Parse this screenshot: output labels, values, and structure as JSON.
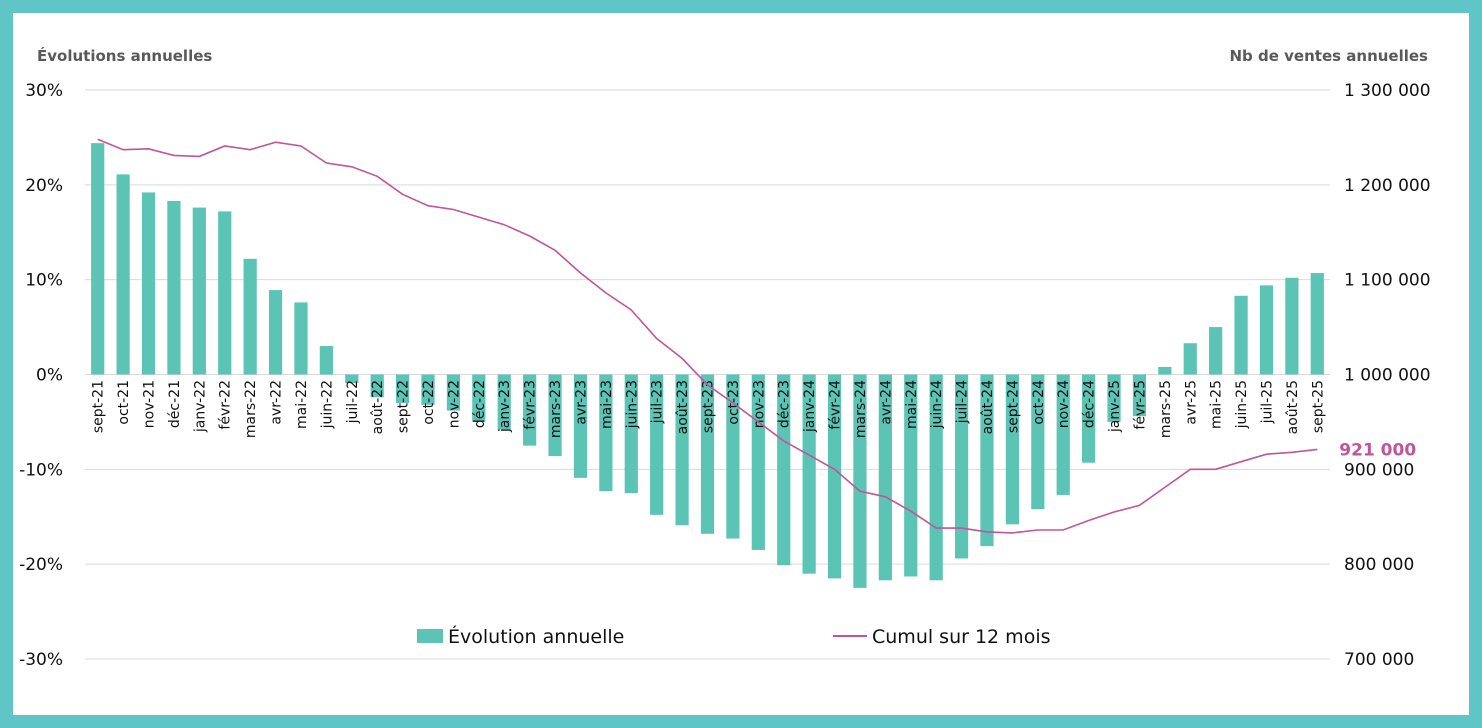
{
  "colors": {
    "frame": "#5fc5c6",
    "bar": "#5cc4b5",
    "line": "#c0559a",
    "grid": "#d9d9d9",
    "text": "#111111",
    "title": "#595959"
  },
  "chart_data": {
    "type": "bar+line",
    "left_axis_title": "Évolutions annuelles",
    "right_axis_title": "Nb de ventes annuelles",
    "left_ticks": [
      "30%",
      "20%",
      "10%",
      "0%",
      "-10%",
      "-20%",
      "-30%"
    ],
    "right_ticks": [
      "1 300 000",
      "1 200 000",
      "1 100 000",
      "1 000 000",
      "900 000",
      "800 000",
      "700 000"
    ],
    "y_left_range": [
      -30,
      30
    ],
    "y_right_range": [
      700000,
      1300000
    ],
    "grid": true,
    "legend_position": "bottom",
    "categories": [
      "sept-21",
      "oct-21",
      "nov-21",
      "déc-21",
      "janv-22",
      "févr-22",
      "mars-22",
      "avr-22",
      "mai-22",
      "juin-22",
      "juil-22",
      "août-22",
      "sept-22",
      "oct-22",
      "nov-22",
      "déc-22",
      "janv-23",
      "févr-23",
      "mars-23",
      "avr-23",
      "mai-23",
      "juin-23",
      "juil-23",
      "août-23",
      "sept-23",
      "oct-23",
      "nov-23",
      "déc-23",
      "janv-24",
      "févr-24",
      "mars-24",
      "avr-24",
      "mai-24",
      "juin-24",
      "juil-24",
      "août-24",
      "sept-24",
      "oct-24",
      "nov-24",
      "déc-24",
      "janv-25",
      "févr-25",
      "mars-25",
      "avr-25",
      "mai-25",
      "juin-25",
      "juil-25",
      "août-25",
      "sept-25"
    ],
    "series": [
      {
        "name": "Évolution annuelle",
        "type": "bar",
        "axis": "left",
        "values": [
          24.4,
          21.1,
          19.2,
          18.3,
          17.6,
          17.2,
          12.2,
          8.9,
          7.6,
          3.0,
          -0.9,
          -2.4,
          -3.0,
          -3.2,
          -3.8,
          -5.0,
          -5.8,
          -7.5,
          -8.6,
          -10.9,
          -12.3,
          -12.5,
          -14.8,
          -15.9,
          -16.8,
          -17.3,
          -18.5,
          -20.1,
          -21.0,
          -21.5,
          -22.5,
          -21.7,
          -21.3,
          -21.7,
          -19.4,
          -18.1,
          -15.8,
          -14.2,
          -12.7,
          -9.3,
          -5.0,
          -4.4,
          0.8,
          3.3,
          5.0,
          8.3,
          9.4,
          10.2,
          10.7
        ]
      },
      {
        "name": "Cumul sur 12 mois",
        "type": "line",
        "axis": "right",
        "values": [
          1248000,
          1237000,
          1238000,
          1231000,
          1230000,
          1241000,
          1237000,
          1245000,
          1241000,
          1223000,
          1219000,
          1209000,
          1190000,
          1178000,
          1174000,
          1166000,
          1158000,
          1146000,
          1131000,
          1107000,
          1086000,
          1068000,
          1038000,
          1017000,
          989000,
          970000,
          950000,
          930000,
          915000,
          900000,
          877000,
          871000,
          856000,
          838000,
          838000,
          834000,
          833000,
          836000,
          836000,
          846000,
          855000,
          862000,
          881000,
          900000,
          900000,
          908000,
          916000,
          918000,
          921000
        ]
      }
    ],
    "annotations": [
      {
        "text": "921 000",
        "series": "Cumul sur 12 mois",
        "category": "sept-25"
      }
    ]
  }
}
